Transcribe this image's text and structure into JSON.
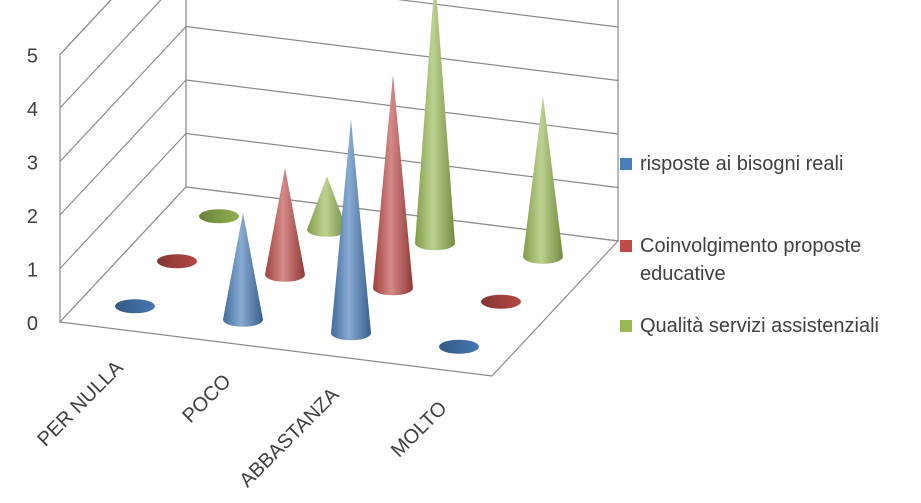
{
  "chart_data": {
    "type": "bar",
    "subtype": "3d-cone",
    "categories": [
      "PER NULLA",
      "POCO",
      "ABBASTANZA",
      "MOLTO"
    ],
    "series": [
      {
        "name": "risposte ai bisogni reali",
        "values": [
          0,
          2,
          4,
          0
        ],
        "color": "#4a7ebb"
      },
      {
        "name": "Coinvolgimento proposte educative",
        "values": [
          0,
          2,
          4,
          0
        ],
        "color": "#be4b48"
      },
      {
        "name": "Qualità servizi assistenziali",
        "values": [
          0,
          1,
          5,
          3
        ],
        "color": "#98b954"
      }
    ],
    "yticks": [
      "0",
      "1",
      "2",
      "3",
      "4",
      "5"
    ],
    "ylim": [
      0,
      5
    ],
    "grid": true,
    "legend": "right"
  }
}
